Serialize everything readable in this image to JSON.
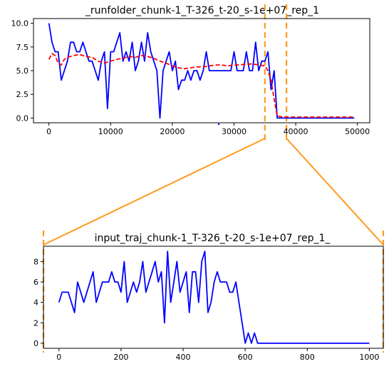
{
  "chart_data": [
    {
      "type": "line",
      "title": "_runfolder_chunk-1_T-326_t-20_s-1e+07_rep_1",
      "xlabel": "",
      "ylabel": "",
      "xlim": [
        -2500,
        52000
      ],
      "ylim": [
        -0.5,
        10.5
      ],
      "xticks": [
        0,
        10000,
        20000,
        30000,
        40000,
        50000
      ],
      "yticks": [
        0.0,
        2.5,
        5.0,
        7.5,
        10.0
      ],
      "ytick_labels": [
        "0.0",
        "2.5",
        "5.0",
        "7.5",
        "10.0"
      ],
      "grid": false,
      "highlight_region": {
        "x": [
          35000,
          38500
        ],
        "color": "#ff9a1f"
      },
      "series": [
        {
          "color": "#0000ff",
          "style": "solid",
          "x": [
            0,
            500,
            1000,
            1500,
            2000,
            2500,
            3000,
            3500,
            4000,
            4500,
            5000,
            5500,
            6000,
            6500,
            7000,
            7500,
            8000,
            8500,
            9000,
            9500,
            10000,
            10500,
            11000,
            11500,
            12000,
            12500,
            13000,
            13500,
            14000,
            14500,
            15000,
            15500,
            16000,
            16500,
            17000,
            17500,
            18000,
            18500,
            19000,
            19500,
            20000,
            20500,
            21000,
            21500,
            22000,
            22500,
            23000,
            23500,
            24000,
            24500,
            25000,
            25500,
            26000,
            26500,
            27000,
            27500,
            28000,
            28500,
            29000,
            29500,
            30000,
            30500,
            31000,
            31500,
            32000,
            32500,
            33000,
            33500,
            34000,
            34500,
            35000,
            35500,
            36000,
            36500,
            37000,
            37500,
            49500
          ],
          "y": [
            10,
            8,
            7,
            7,
            4,
            5,
            6,
            8,
            8,
            7,
            7,
            8,
            7,
            6,
            6,
            5,
            4,
            6,
            7,
            1,
            7,
            7,
            8,
            9,
            6,
            7,
            6,
            8,
            5,
            6,
            8,
            6,
            9,
            7,
            6,
            5,
            0,
            5,
            6,
            7,
            5,
            6,
            3,
            4,
            4,
            5,
            4,
            5,
            5,
            4,
            5,
            7,
            5,
            5,
            5,
            5,
            5,
            5,
            5,
            5,
            7,
            5,
            5,
            5,
            7,
            5,
            5,
            8,
            5,
            6,
            6,
            7,
            3,
            5,
            0,
            0,
            0
          ]
        },
        {
          "color": "#ff0000",
          "style": "dashed",
          "x": [
            0,
            500,
            1000,
            1500,
            2000,
            2500,
            3000,
            4000,
            5000,
            6000,
            7000,
            8000,
            9000,
            10000,
            11000,
            12000,
            13000,
            14000,
            15000,
            16000,
            17000,
            18000,
            19000,
            20000,
            21000,
            22000,
            23000,
            24000,
            25000,
            26000,
            27000,
            28000,
            29000,
            30000,
            31000,
            32000,
            33000,
            34000,
            35000,
            35500,
            36000,
            36500,
            37000,
            38000,
            49500
          ],
          "y": [
            6.2,
            6.8,
            6.6,
            5.8,
            5.6,
            6.2,
            6.4,
            6.6,
            6.7,
            6.5,
            6.4,
            6.0,
            5.8,
            6.0,
            6.2,
            6.3,
            6.5,
            6.4,
            6.6,
            6.5,
            6.3,
            6.0,
            5.8,
            5.5,
            5.3,
            5.2,
            5.3,
            5.4,
            5.4,
            5.5,
            5.6,
            5.6,
            5.5,
            5.6,
            5.6,
            5.7,
            5.7,
            5.6,
            5.5,
            5.0,
            4.0,
            2.0,
            0.2,
            0.1,
            0.1
          ]
        }
      ]
    },
    {
      "type": "line",
      "title": "input_traj_chunk-1_T-326_t-20_s-1e+07_rep_1_",
      "xlabel": "",
      "ylabel": "",
      "xlim": [
        -50,
        1045
      ],
      "ylim": [
        -0.5,
        9.5
      ],
      "xticks": [
        0,
        200,
        400,
        600,
        800,
        1000
      ],
      "yticks": [
        0,
        2,
        4,
        6,
        8
      ],
      "grid": false,
      "series": [
        {
          "color": "#0000ff",
          "style": "solid",
          "x": [
            0,
            10,
            20,
            30,
            40,
            50,
            60,
            70,
            80,
            90,
            100,
            110,
            120,
            130,
            140,
            150,
            160,
            170,
            180,
            190,
            200,
            210,
            220,
            230,
            240,
            250,
            260,
            270,
            280,
            290,
            300,
            310,
            320,
            330,
            340,
            350,
            360,
            370,
            380,
            390,
            400,
            410,
            420,
            430,
            440,
            450,
            460,
            470,
            480,
            490,
            500,
            510,
            520,
            530,
            540,
            550,
            560,
            570,
            580,
            590,
            600,
            610,
            620,
            630,
            640,
            650,
            1000
          ],
          "y": [
            4,
            5,
            5,
            5,
            4,
            3,
            6,
            5,
            4,
            5,
            6,
            7,
            4,
            5,
            6,
            6,
            6,
            7,
            6,
            6,
            5,
            8,
            4,
            5,
            6,
            5,
            6,
            8,
            5,
            6,
            7,
            8,
            6,
            7,
            2,
            9,
            4,
            6,
            8,
            5,
            6,
            7,
            3,
            7,
            7,
            4,
            8,
            9,
            3,
            4,
            6,
            7,
            6,
            6,
            6,
            5,
            5,
            6,
            4,
            2,
            0,
            1,
            0,
            1,
            0,
            0,
            0
          ]
        }
      ]
    }
  ]
}
